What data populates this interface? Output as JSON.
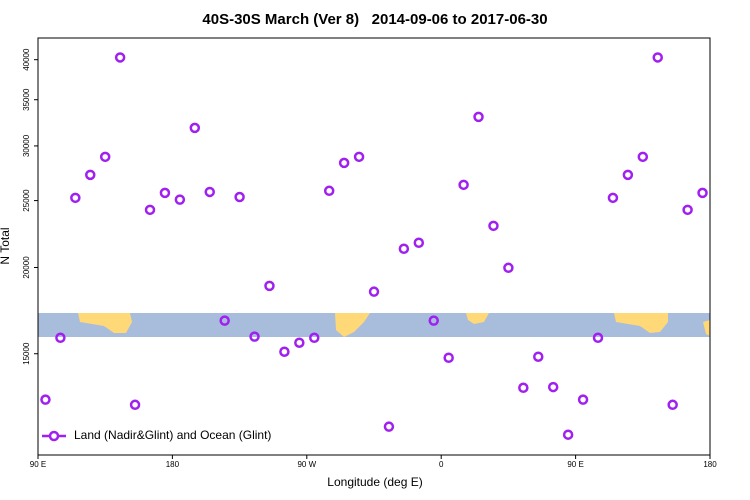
{
  "chart_data": {
    "type": "scatter",
    "title": "40S-30S March (Ver 8)   2014-09-06 to 2017-06-30",
    "x_label": "Longitude (deg E)",
    "y_label": "N Total",
    "log_scale": "y",
    "legend": "lower left",
    "xlim": [
      90,
      540
    ],
    "ylim": [
      10700,
      43000
    ],
    "xticks": [
      {
        "value": 90,
        "label": "90 E"
      },
      180,
      {
        "value": 270,
        "label": "90 W"
      },
      {
        "value": 360,
        "label": "0"
      },
      {
        "value": 450,
        "label": "90 E"
      },
      {
        "value": 540,
        "label": "180"
      }
    ],
    "yticks": [
      15000,
      20000,
      25000,
      30000,
      35000,
      40000
    ],
    "series": [
      {
        "name": "Land (Nadir&Glint) and Ocean (Glint)",
        "color": "#a020f0",
        "x": [
          95,
          105,
          115,
          125,
          135,
          145,
          155,
          165,
          175,
          185,
          195,
          205,
          215,
          225,
          235,
          245,
          255,
          265,
          275,
          285,
          295,
          305,
          315,
          325,
          335,
          345,
          355,
          365,
          375,
          385,
          395,
          405,
          415,
          425,
          435,
          445,
          455,
          465,
          475,
          485,
          495,
          505,
          515,
          525,
          535
        ],
        "values": [
          12870,
          15820,
          25230,
          27240,
          28930,
          40300,
          12650,
          24240,
          25650,
          25080,
          31860,
          25730,
          16750,
          25300,
          15880,
          18810,
          15100,
          15560,
          15820,
          25830,
          28350,
          28930,
          18450,
          11760,
          21290,
          21720,
          16750,
          14800,
          26350,
          33050,
          22980,
          19980,
          13390,
          14850,
          13420,
          11450,
          12870,
          15820,
          25230,
          27240,
          28930,
          40300,
          12650,
          24240,
          25650
        ]
      }
    ]
  }
}
